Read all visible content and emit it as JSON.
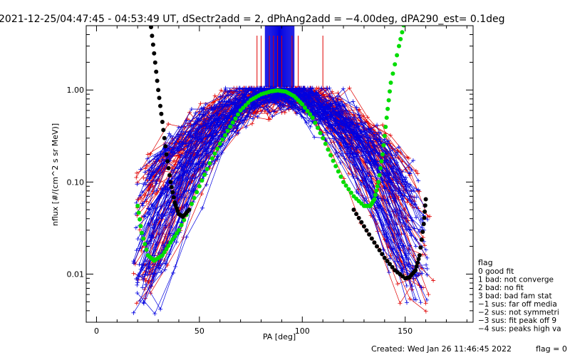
{
  "chart_data": {
    "type": "line",
    "title": "2021-12-25/04:47:45 - 04:53:49 UT, dSectr2add = 2, dPhAng2add = −4.00deg, dPA290_est=   0.1deg",
    "xlabel": "PA [deg]",
    "ylabel": "nflux [#/(cm^2 s sr MeV)]",
    "xlim": [
      -5,
      183
    ],
    "ylim": [
      0.003,
      5
    ],
    "yscale": "log",
    "x_ticks": [
      {
        "value": 0,
        "label": "0"
      },
      {
        "value": 50,
        "label": "50"
      },
      {
        "value": 100,
        "label": "100"
      },
      {
        "value": 150,
        "label": "150"
      }
    ],
    "y_ticks": [
      {
        "value": 0.01,
        "label": "0.01"
      },
      {
        "value": 0.1,
        "label": "0.10"
      },
      {
        "value": 1.0,
        "label": "1.00"
      }
    ],
    "grid": false,
    "colors": {
      "red_traces": "#e00000",
      "blue_traces": "#0000e0",
      "green_fit": "#00dd00",
      "black_fit": "#000000"
    },
    "series": [
      {
        "color": "#00dd00",
        "style": "thick-dots",
        "x": [
          20,
          22,
          25,
          28,
          32,
          36,
          40,
          45,
          50,
          55,
          60,
          65,
          70,
          75,
          80,
          85,
          88,
          92,
          96,
          100,
          105,
          110,
          115,
          120,
          125,
          130,
          133,
          135,
          137,
          139,
          141,
          143,
          147,
          150
        ],
        "y": [
          0.055,
          0.028,
          0.016,
          0.014,
          0.016,
          0.022,
          0.03,
          0.05,
          0.09,
          0.16,
          0.26,
          0.4,
          0.6,
          0.78,
          0.9,
          0.97,
          0.99,
          0.96,
          0.86,
          0.7,
          0.5,
          0.3,
          0.17,
          0.1,
          0.07,
          0.055,
          0.055,
          0.065,
          0.1,
          0.2,
          0.5,
          1.2,
          3,
          6
        ]
      },
      {
        "color": "#000000",
        "style": "thick-dots",
        "x": [
          26,
          28,
          30,
          32,
          34,
          36,
          38,
          40,
          42,
          45
        ],
        "y": [
          6,
          2.5,
          1.0,
          0.45,
          0.2,
          0.1,
          0.06,
          0.045,
          0.042,
          0.05
        ]
      },
      {
        "color": "#000000",
        "style": "thick-dots",
        "x": [
          125,
          130,
          135,
          140,
          145,
          150,
          152,
          155,
          157,
          159,
          160
        ],
        "y": [
          0.05,
          0.033,
          0.022,
          0.015,
          0.011,
          0.009,
          0.0092,
          0.011,
          0.016,
          0.035,
          0.065
        ]
      }
    ],
    "vertical_markers_red": [
      78,
      80,
      84,
      86,
      88,
      90,
      95,
      98,
      110
    ],
    "vertical_markers_blue_range": [
      82,
      96
    ],
    "legend": {
      "title": "flag",
      "entries": [
        " 0 good fit",
        " 1 bad: not converge",
        " 2 bad: no fit",
        " 3 bad: bad fam stat",
        "−1 sus: far off media",
        "−2 sus: not symmetri",
        "−3 sus: fit peak off 9",
        "−4 sus: peaks high va"
      ]
    },
    "footer_created": "Created: Wed Jan 26 11:46:45 2022",
    "footer_flag": "flag = 0"
  }
}
